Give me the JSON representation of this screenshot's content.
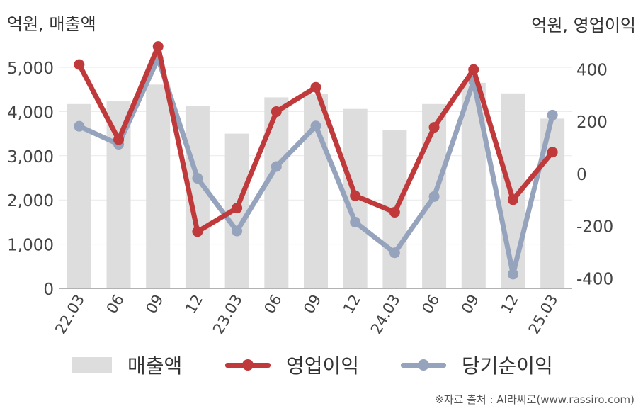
{
  "units": {
    "left": "억원, 매출액",
    "right": "억원, 영업이익"
  },
  "legend": {
    "revenue": "매출액",
    "operating_profit": "영업이익",
    "net_income": "당기순이익"
  },
  "source": "※자료 출처 : AI라씨로(www.rassiro.com)",
  "colors": {
    "revenue": "#dddddd",
    "operating_profit": "#c0393b",
    "net_income": "#95a3bc",
    "axis": "#999999",
    "grid": "#e9e9e9"
  },
  "chart_data": {
    "type": "bar",
    "categories": [
      "22.03",
      "06",
      "09",
      "12",
      "23.03",
      "06",
      "09",
      "12",
      "24.03",
      "06",
      "09",
      "12",
      "25.03"
    ],
    "left_axis": {
      "ylim": [
        0,
        5000
      ],
      "ticks": [
        "0",
        "1,000",
        "2,000",
        "3,000",
        "4,000",
        "5,000"
      ],
      "tick_values": [
        0,
        1000,
        2000,
        3000,
        4000,
        5000
      ]
    },
    "right_axis": {
      "ylim": [
        -400,
        500
      ],
      "ticks": [
        "-400",
        "-200",
        "0",
        "200",
        "400"
      ],
      "tick_values": [
        -400,
        -200,
        0,
        200,
        400
      ]
    },
    "grid": true,
    "legend_position": "bottom",
    "series": [
      {
        "name": "매출액",
        "type": "bar",
        "axis": "left",
        "values": [
          4170,
          4230,
          4610,
          4120,
          3500,
          4320,
          4390,
          4060,
          3580,
          4170,
          4650,
          4410,
          3840
        ]
      },
      {
        "name": "영업이익",
        "type": "line",
        "axis": "right",
        "values": [
          417,
          130,
          486,
          -222,
          -132,
          237,
          330,
          -85,
          -148,
          177,
          398,
          -100,
          82
        ]
      },
      {
        "name": "당기순이익",
        "type": "line",
        "axis": "right",
        "values": [
          181,
          112,
          440,
          -18,
          -220,
          27,
          182,
          -186,
          -303,
          -88,
          354,
          -385,
          224
        ]
      }
    ]
  }
}
